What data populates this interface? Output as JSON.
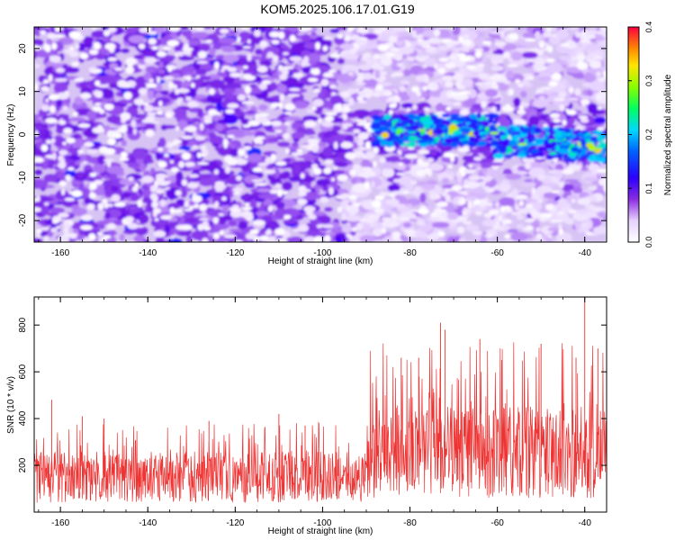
{
  "figure": {
    "title": "KOM5.2025.106.17.01.G19"
  },
  "chart_data": [
    {
      "type": "heatmap",
      "title": "KOM5.2025.106.17.01.G19",
      "xlabel": "Height of straight line (km)",
      "ylabel": "Frequency (Hz)",
      "xlim": [
        -166,
        -35
      ],
      "ylim": [
        -25,
        25
      ],
      "x_ticks": [
        "-160",
        "-140",
        "-120",
        "-100",
        "-80",
        "-60",
        "-40"
      ],
      "y_ticks": [
        "-20",
        "-10",
        "0",
        "10",
        "20"
      ],
      "colorbar": {
        "label": "Normalized spectral amplitude",
        "range": [
          0.0,
          0.4
        ],
        "ticks": [
          "0.0",
          "0.1",
          "0.2",
          "0.3",
          "0.4"
        ]
      },
      "features": {
        "signal_band_frequency_hz": 0,
        "signal_band_start_km": -88,
        "signal_band_end_km": -35
      },
      "grid": false,
      "colors": {
        "low": "#ffffff",
        "mid_low": "#8a2be2",
        "mid": "#0000ff",
        "high": "#00ff00",
        "max": "#ff0000"
      }
    },
    {
      "type": "line",
      "xlabel": "Height of straight line (km)",
      "ylabel": "SNR (10 * v/v)",
      "xlim": [
        -166,
        -35
      ],
      "ylim": [
        0,
        920
      ],
      "x_ticks": [
        "-160",
        "-140",
        "-120",
        "-100",
        "-80",
        "-60",
        "-40"
      ],
      "y_ticks": [
        "200",
        "400",
        "600",
        "800"
      ],
      "grid": false,
      "line_color": "#ee3333",
      "series_profile": [
        {
          "x_from": -166,
          "x_to": -90,
          "typical_low": 40,
          "typical_high": 260,
          "max": 480
        },
        {
          "x_from": -90,
          "x_to": -35,
          "typical_low": 60,
          "typical_high": 450,
          "max": 920
        }
      ],
      "peaks": [
        {
          "x": -162,
          "y": 480
        },
        {
          "x": -155,
          "y": 410
        },
        {
          "x": -150,
          "y": 400
        },
        {
          "x": -126,
          "y": 390
        },
        {
          "x": -110,
          "y": 420
        },
        {
          "x": -104,
          "y": 370
        },
        {
          "x": -82,
          "y": 660
        },
        {
          "x": -78,
          "y": 660
        },
        {
          "x": -73,
          "y": 810
        },
        {
          "x": -72,
          "y": 780
        },
        {
          "x": -64,
          "y": 740
        },
        {
          "x": -59,
          "y": 650
        },
        {
          "x": -50,
          "y": 720
        },
        {
          "x": -42,
          "y": 660
        },
        {
          "x": -40,
          "y": 920
        },
        {
          "x": -37,
          "y": 700
        }
      ]
    }
  ]
}
